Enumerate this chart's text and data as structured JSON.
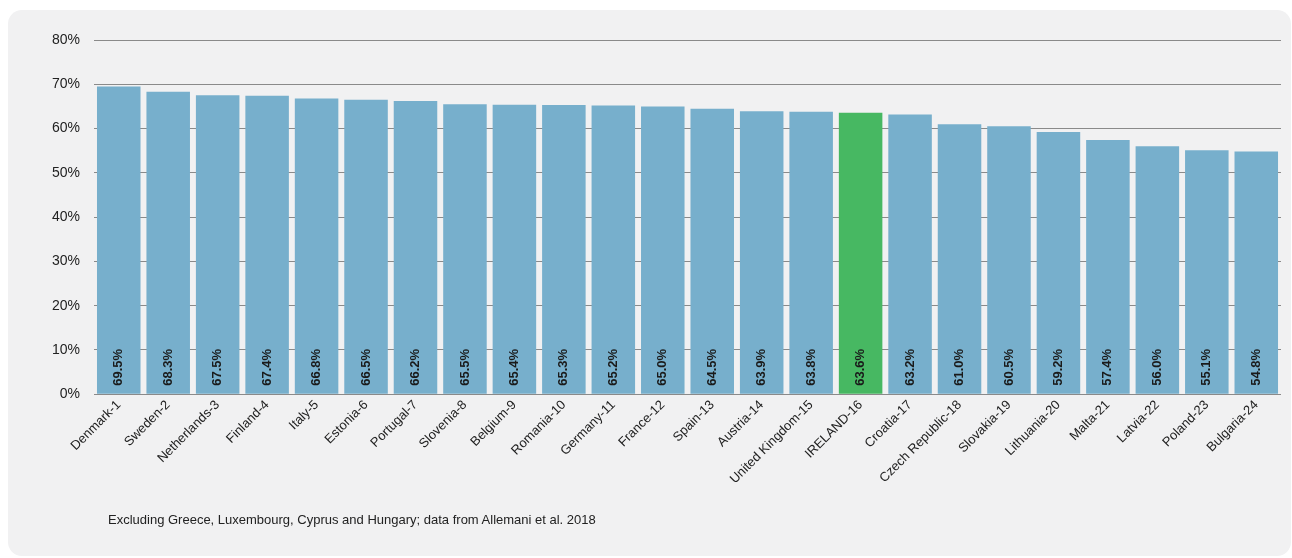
{
  "chart_data": {
    "type": "bar",
    "categories": [
      "Denmark-1",
      "Sweden-2",
      "Netherlands-3",
      "Finland-4",
      "Italy-5",
      "Estonia-6",
      "Portugal-7",
      "Slovenia-8",
      "Belgium-9",
      "Romania-10",
      "Germany-11",
      "France-12",
      "Spain-13",
      "Austria-14",
      "United Kingdom-15",
      "IRELAND-16",
      "Croatia-17",
      "Czech Republic-18",
      "Slovakia-19",
      "Lithuania-20",
      "Malta-21",
      "Latvia-22",
      "Poland-23",
      "Bulgaria-24"
    ],
    "values": [
      69.5,
      68.3,
      67.5,
      67.4,
      66.8,
      66.5,
      66.2,
      65.5,
      65.4,
      65.3,
      65.2,
      65.0,
      64.5,
      63.9,
      63.8,
      63.6,
      63.2,
      61.0,
      60.5,
      59.2,
      57.4,
      56.0,
      55.1,
      54.8
    ],
    "value_labels": [
      "69.5%",
      "68.3%",
      "67.5%",
      "67.4%",
      "66.8%",
      "66.5%",
      "66.2%",
      "65.5%",
      "65.4%",
      "65.3%",
      "65.2%",
      "65.0%",
      "64.5%",
      "63.9%",
      "63.8%",
      "63.6%",
      "63.2%",
      "61.0%",
      "60.5%",
      "59.2%",
      "57.4%",
      "56.0%",
      "55.1%",
      "54.8%"
    ],
    "colors": [
      "#77afcc",
      "#77afcc",
      "#77afcc",
      "#77afcc",
      "#77afcc",
      "#77afcc",
      "#77afcc",
      "#77afcc",
      "#77afcc",
      "#77afcc",
      "#77afcc",
      "#77afcc",
      "#77afcc",
      "#77afcc",
      "#77afcc",
      "#47b862",
      "#77afcc",
      "#77afcc",
      "#77afcc",
      "#77afcc",
      "#77afcc",
      "#77afcc",
      "#77afcc",
      "#77afcc"
    ],
    "ylim": [
      0,
      80
    ],
    "yticks": [
      {
        "value": 0,
        "label": "0%"
      },
      {
        "value": 10,
        "label": "10%"
      },
      {
        "value": 20,
        "label": "20%"
      },
      {
        "value": 30,
        "label": "30%"
      },
      {
        "value": 40,
        "label": "40%"
      },
      {
        "value": 50,
        "label": "50%"
      },
      {
        "value": 60,
        "label": "60%"
      },
      {
        "value": 70,
        "label": "70%"
      },
      {
        "value": 80,
        "label": "80%"
      }
    ],
    "grid": "y",
    "legend": false,
    "annotations": [
      "Excluding Greece, Luxembourg, Cyprus and Hungary; data from Allemani et al. 2018"
    ]
  }
}
